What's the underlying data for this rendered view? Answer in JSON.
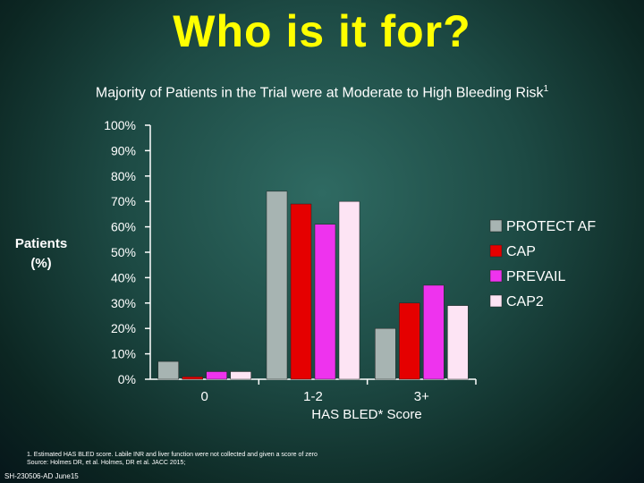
{
  "title": "Who is it for?",
  "subtitle": "Majority of Patients in the Trial were at Moderate to High Bleeding Risk",
  "subtitle_sup": "1",
  "footnote_lines": [
    "1. Estimated HAS BLED score. Labile INR and liver function were not collected and given a score of zero",
    "Source: Holmes DR, et al. Holmes, DR et al. JACC 2015;"
  ],
  "slide_id": "SH-230506-AD June15",
  "chart_data": {
    "type": "bar",
    "categories": [
      "0",
      "1-2",
      "3+"
    ],
    "xlabel": "HAS BLED* Score",
    "ylabel": "Patients (%)",
    "ylim": [
      0,
      100
    ],
    "yticks": [
      "0%",
      "10%",
      "20%",
      "30%",
      "40%",
      "50%",
      "60%",
      "70%",
      "80%",
      "90%",
      "100%"
    ],
    "legend_position": "right",
    "grid": false,
    "series": [
      {
        "name": "PROTECT AF",
        "color": "#a7b4b2",
        "values": [
          7,
          74,
          20
        ]
      },
      {
        "name": "CAP",
        "color": "#e50000",
        "values": [
          1,
          69,
          30
        ]
      },
      {
        "name": "PREVAIL",
        "color": "#ee33ee",
        "values": [
          3,
          61,
          37
        ]
      },
      {
        "name": "CAP2",
        "color": "#fde4f4",
        "values": [
          3,
          70,
          29
        ]
      }
    ]
  }
}
